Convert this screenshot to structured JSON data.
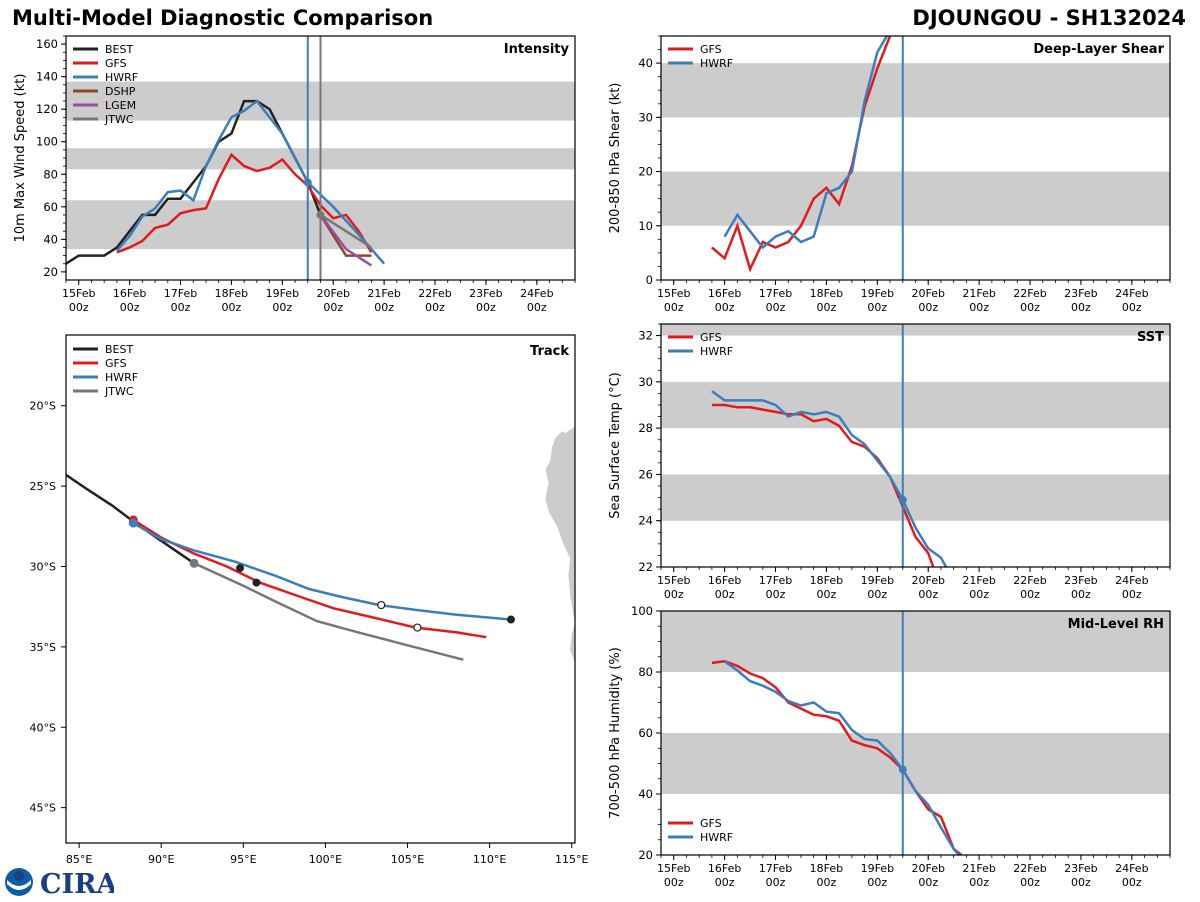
{
  "header": {
    "title": "Multi-Model Diagnostic Comparison",
    "storm": "DJOUNGOU - SH132024"
  },
  "logo": {
    "text": "CIRA",
    "agency_icon": "noaa-icon"
  },
  "colors": {
    "BEST": "#222222",
    "GFS": "#e31a1c",
    "HWRF": "#3a7fbd",
    "DSHP": "#8c4a22",
    "LGEM": "#984ea3",
    "JTWC": "#777777",
    "band": "#cccccc",
    "land": "#cccccc"
  },
  "chart_data": [
    {
      "id": "intensity",
      "type": "line",
      "title": "Intensity",
      "ylabel": "10m Max Wind Speed (kt)",
      "xlabel": "",
      "x_unit": "days since 15Feb 00z",
      "xlim": [
        -0.25,
        9.75
      ],
      "ylim": [
        15,
        165
      ],
      "yticks": [
        20,
        40,
        60,
        80,
        100,
        120,
        140,
        160
      ],
      "xticks": [
        {
          "x": 0,
          "label": "15Feb",
          "sub": "00z"
        },
        {
          "x": 1,
          "label": "16Feb",
          "sub": "00z"
        },
        {
          "x": 2,
          "label": "17Feb",
          "sub": "00z"
        },
        {
          "x": 3,
          "label": "18Feb",
          "sub": "00z"
        },
        {
          "x": 4,
          "label": "19Feb",
          "sub": "00z"
        },
        {
          "x": 5,
          "label": "20Feb",
          "sub": "00z"
        },
        {
          "x": 6,
          "label": "21Feb",
          "sub": "00z"
        },
        {
          "x": 7,
          "label": "22Feb",
          "sub": "00z"
        },
        {
          "x": 8,
          "label": "23Feb",
          "sub": "00z"
        },
        {
          "x": 9,
          "label": "24Feb",
          "sub": "00z"
        }
      ],
      "bands": [
        [
          34,
          64
        ],
        [
          83,
          96
        ],
        [
          113,
          137
        ]
      ],
      "vlines": [
        {
          "x": 4.5,
          "color_key": "HWRF"
        },
        {
          "x": 4.75,
          "color_key": "JTWC"
        }
      ],
      "legend": [
        "BEST",
        "GFS",
        "HWRF",
        "DSHP",
        "LGEM",
        "JTWC"
      ],
      "legend_position": "top-left",
      "series": [
        {
          "name": "BEST",
          "x": [
            -0.25,
            0,
            0.25,
            0.5,
            0.75,
            1,
            1.25,
            1.5,
            1.75,
            2,
            2.25,
            2.5,
            2.75,
            3,
            3.25,
            3.5,
            3.75,
            4,
            4.25,
            4.5,
            4.75
          ],
          "y": [
            25,
            30,
            30,
            30,
            35,
            45,
            55,
            55,
            65,
            65,
            75,
            85,
            100,
            105,
            125,
            125,
            120,
            105,
            90,
            75,
            55
          ]
        },
        {
          "name": "GFS",
          "x": [
            0.75,
            1,
            1.25,
            1.5,
            1.75,
            2,
            2.25,
            2.5,
            2.75,
            3,
            3.25,
            3.5,
            3.75,
            4,
            4.25,
            4.5,
            4.75,
            5,
            5.25,
            5.5,
            5.75
          ],
          "y": [
            32,
            35,
            39,
            47,
            49,
            56,
            58,
            59,
            77,
            92,
            85,
            82,
            84,
            89,
            80,
            73,
            61,
            53,
            55,
            45,
            32
          ]
        },
        {
          "name": "HWRF",
          "x": [
            0.75,
            1,
            1.25,
            1.5,
            1.75,
            2,
            2.25,
            2.5,
            2.75,
            3,
            3.25,
            3.5,
            4,
            4.5,
            5,
            5.5,
            6
          ],
          "y": [
            33,
            42,
            54,
            59,
            69,
            70,
            64,
            85,
            101,
            115,
            119,
            125,
            105,
            75,
            60,
            43,
            25
          ]
        },
        {
          "name": "DSHP",
          "x": [
            4.75,
            5.25,
            5.75
          ],
          "y": [
            55,
            30,
            30
          ]
        },
        {
          "name": "LGEM",
          "x": [
            4.75,
            5.25,
            5.75
          ],
          "y": [
            55,
            34,
            24
          ]
        },
        {
          "name": "JTWC",
          "x": [
            4.75,
            5.25,
            5.75
          ],
          "y": [
            55,
            45,
            35
          ]
        }
      ],
      "markers": [
        {
          "series": "HWRF",
          "x": 4.5,
          "y": 75
        },
        {
          "series": "JTWC",
          "x": 4.75,
          "y": 55
        }
      ]
    },
    {
      "id": "shear",
      "type": "line",
      "title": "Deep-Layer Shear",
      "ylabel": "200-850 hPa Shear (kt)",
      "xlim": [
        -0.25,
        9.75
      ],
      "ylim": [
        0,
        45
      ],
      "yticks": [
        0,
        10,
        20,
        30,
        40
      ],
      "bands": [
        [
          10,
          20
        ],
        [
          30,
          40
        ]
      ],
      "vlines": [
        {
          "x": 4.5,
          "color_key": "HWRF"
        }
      ],
      "legend": [
        "GFS",
        "HWRF"
      ],
      "legend_position": "top-left",
      "series": [
        {
          "name": "GFS",
          "x": [
            0.75,
            1,
            1.25,
            1.5,
            1.75,
            2,
            2.25,
            2.5,
            2.75,
            3,
            3.25,
            3.5,
            3.75,
            4,
            4.25
          ],
          "y": [
            6,
            4,
            10,
            2,
            7,
            6,
            7,
            10,
            15,
            17,
            14,
            21,
            32,
            39,
            45
          ]
        },
        {
          "name": "HWRF",
          "x": [
            1,
            1.25,
            1.5,
            1.75,
            2,
            2.25,
            2.5,
            2.75,
            3,
            3.25,
            3.5,
            3.75,
            4,
            4.25
          ],
          "y": [
            8,
            12,
            9,
            6,
            8,
            9,
            7,
            8,
            16,
            17,
            20,
            33,
            42,
            46
          ]
        }
      ],
      "markers": []
    },
    {
      "id": "sst",
      "type": "line",
      "title": "SST",
      "ylabel": "Sea Surface Temp (°C)",
      "xlim": [
        -0.25,
        9.75
      ],
      "ylim": [
        22,
        32.5
      ],
      "yticks": [
        22,
        24,
        26,
        28,
        30,
        32
      ],
      "bands": [
        [
          24,
          26
        ],
        [
          28,
          30
        ],
        [
          32,
          33
        ]
      ],
      "vlines": [
        {
          "x": 4.5,
          "color_key": "HWRF"
        }
      ],
      "legend": [
        "GFS",
        "HWRF"
      ],
      "legend_position": "top-left",
      "series": [
        {
          "name": "GFS",
          "x": [
            0.75,
            1,
            1.25,
            1.5,
            1.75,
            2,
            2.25,
            2.5,
            2.75,
            3,
            3.25,
            3.5,
            3.75,
            4,
            4.25,
            4.5,
            4.75,
            5,
            5.1
          ],
          "y": [
            29.0,
            29.0,
            28.9,
            28.9,
            28.8,
            28.7,
            28.6,
            28.6,
            28.3,
            28.4,
            28.1,
            27.4,
            27.2,
            26.7,
            25.9,
            24.6,
            23.3,
            22.6,
            22.0
          ]
        },
        {
          "name": "HWRF",
          "x": [
            0.75,
            1,
            1.25,
            1.5,
            1.75,
            2,
            2.25,
            2.5,
            2.75,
            3,
            3.25,
            3.5,
            3.75,
            4,
            4.25,
            4.5,
            4.75,
            5,
            5.25,
            5.35
          ],
          "y": [
            29.6,
            29.2,
            29.2,
            29.2,
            29.2,
            29.0,
            28.5,
            28.7,
            28.6,
            28.7,
            28.5,
            27.7,
            27.3,
            26.6,
            25.9,
            24.9,
            23.7,
            22.8,
            22.4,
            22.0
          ]
        }
      ],
      "markers": [
        {
          "series": "HWRF",
          "x": 4.5,
          "y": 24.9
        }
      ]
    },
    {
      "id": "rh",
      "type": "line",
      "title": "Mid-Level RH",
      "ylabel": "700-500 hPa Humidity (%)",
      "xlim": [
        -0.25,
        9.75
      ],
      "ylim": [
        20,
        100
      ],
      "yticks": [
        20,
        40,
        60,
        80,
        100
      ],
      "bands": [
        [
          40,
          60
        ],
        [
          80,
          100
        ]
      ],
      "vlines": [
        {
          "x": 4.5,
          "color_key": "HWRF"
        }
      ],
      "legend": [
        "GFS",
        "HWRF"
      ],
      "legend_position": "bottom-left",
      "series": [
        {
          "name": "GFS",
          "x": [
            0.75,
            1,
            1.25,
            1.5,
            1.75,
            2,
            2.25,
            2.5,
            2.75,
            3,
            3.25,
            3.5,
            3.75,
            4,
            4.25,
            4.5,
            4.75,
            5,
            5.25,
            5.5,
            5.65
          ],
          "y": [
            83,
            83.5,
            82,
            79.5,
            78,
            75,
            70,
            68,
            66,
            65.5,
            64,
            57.5,
            56,
            55,
            52,
            48,
            41,
            35,
            32.5,
            22,
            20
          ]
        },
        {
          "name": "HWRF",
          "x": [
            1,
            1.25,
            1.5,
            1.75,
            2,
            2.25,
            2.5,
            2.75,
            3,
            3.25,
            3.5,
            3.75,
            4,
            4.25,
            4.5,
            4.75,
            5,
            5.25,
            5.5,
            5.6
          ],
          "y": [
            83.5,
            80.5,
            77,
            75.5,
            73.5,
            70.5,
            69,
            70,
            67,
            66.5,
            61,
            58,
            57.5,
            53.5,
            48,
            41,
            36.5,
            29,
            22,
            20
          ]
        }
      ],
      "markers": [
        {
          "series": "HWRF",
          "x": 4.5,
          "y": 48
        }
      ]
    },
    {
      "id": "track",
      "type": "line",
      "title": "Track",
      "xlabel": "Longitude",
      "ylabel": "Latitude",
      "xlim": [
        84.2,
        115.2
      ],
      "ylim": [
        -47.2,
        -15.6
      ],
      "xticks": [
        {
          "v": 85,
          "label": "85°E"
        },
        {
          "v": 90,
          "label": "90°E"
        },
        {
          "v": 95,
          "label": "95°E"
        },
        {
          "v": 100,
          "label": "100°E"
        },
        {
          "v": 105,
          "label": "105°E"
        },
        {
          "v": 110,
          "label": "110°E"
        },
        {
          "v": 115,
          "label": "115°E"
        }
      ],
      "yticks": [
        {
          "v": -20,
          "label": "20°S"
        },
        {
          "v": -25,
          "label": "25°S"
        },
        {
          "v": -30,
          "label": "30°S"
        },
        {
          "v": -35,
          "label": "35°S"
        },
        {
          "v": -40,
          "label": "40°S"
        },
        {
          "v": -45,
          "label": "45°S"
        }
      ],
      "legend": [
        "BEST",
        "GFS",
        "HWRF",
        "JTWC"
      ],
      "legend_position": "top-left",
      "series": [
        {
          "name": "BEST",
          "lon": [
            84.2,
            85.5,
            87.0,
            88.3,
            90.0,
            92.0
          ],
          "lat": [
            -24.3,
            -25.2,
            -26.2,
            -27.2,
            -28.4,
            -29.8
          ]
        },
        {
          "name": "GFS",
          "lon": [
            88.3,
            90.0,
            92.0,
            94.0,
            96.0,
            98.5,
            100.5,
            103.0,
            105.5,
            108.0,
            109.8
          ],
          "lat": [
            -27.1,
            -28.2,
            -29.2,
            -30.0,
            -31.0,
            -31.9,
            -32.6,
            -33.2,
            -33.8,
            -34.1,
            -34.4
          ]
        },
        {
          "name": "HWRF",
          "lon": [
            88.3,
            90.0,
            92.0,
            94.5,
            97.0,
            99.0,
            101.0,
            103.3,
            105.5,
            108.0,
            111.3
          ],
          "lat": [
            -27.3,
            -28.3,
            -29.0,
            -29.7,
            -30.6,
            -31.4,
            -31.9,
            -32.4,
            -32.7,
            -33.0,
            -33.3
          ]
        },
        {
          "name": "JTWC",
          "lon": [
            92.0,
            95.0,
            97.0,
            99.5,
            102.0,
            105.0,
            108.4
          ],
          "lat": [
            -29.8,
            -31.2,
            -32.2,
            -33.4,
            -34.1,
            -34.9,
            -35.8
          ]
        }
      ],
      "markers": [
        {
          "series": "GFS",
          "lon": 88.3,
          "lat": -27.1,
          "style": "filled"
        },
        {
          "series": "HWRF",
          "lon": 88.3,
          "lat": -27.3,
          "style": "filled"
        },
        {
          "series": "JTWC",
          "lon": 92.0,
          "lat": -29.8,
          "style": "filled"
        },
        {
          "series": "BEST",
          "lon": 94.8,
          "lat": -30.1,
          "style": "black-filled"
        },
        {
          "series": "BEST",
          "lon": 95.8,
          "lat": -31.0,
          "style": "black-filled"
        },
        {
          "series": "HWRF",
          "lon": 103.4,
          "lat": -32.4,
          "style": "open"
        },
        {
          "series": "GFS",
          "lon": 105.6,
          "lat": -33.8,
          "style": "open"
        },
        {
          "series": "BEST",
          "lon": 111.3,
          "lat": -33.3,
          "style": "black-filled"
        }
      ]
    }
  ]
}
